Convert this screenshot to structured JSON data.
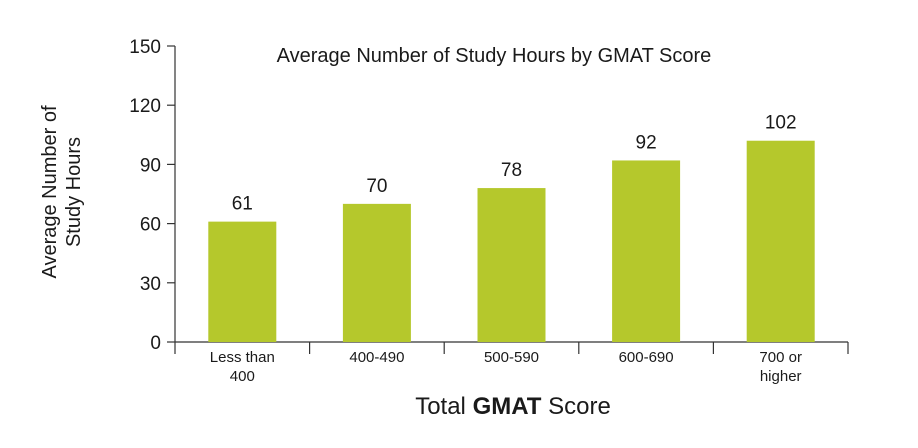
{
  "chart_data": {
    "type": "bar",
    "title": "Average Number of Study Hours by GMAT Score",
    "ylabel_lines": [
      "Average Number of",
      "Study Hours"
    ],
    "xlabel_prefix": "Total ",
    "xlabel_bold": "GMAT",
    "xlabel_suffix": " Score",
    "categories": [
      [
        "Less than",
        "400"
      ],
      [
        "400-490"
      ],
      [
        "500-590"
      ],
      [
        "600-690"
      ],
      [
        "700 or",
        "higher"
      ]
    ],
    "values": [
      61,
      70,
      78,
      92,
      102
    ],
    "value_labels": [
      "61",
      "70",
      "78",
      "92",
      "102"
    ],
    "ylim": [
      0,
      150
    ],
    "yticks": [
      0,
      30,
      60,
      90,
      120,
      150
    ],
    "ytick_labels": [
      "0",
      "30",
      "60",
      "90",
      "120",
      "150"
    ],
    "bar_color": "#b5c82c",
    "grid": false
  }
}
